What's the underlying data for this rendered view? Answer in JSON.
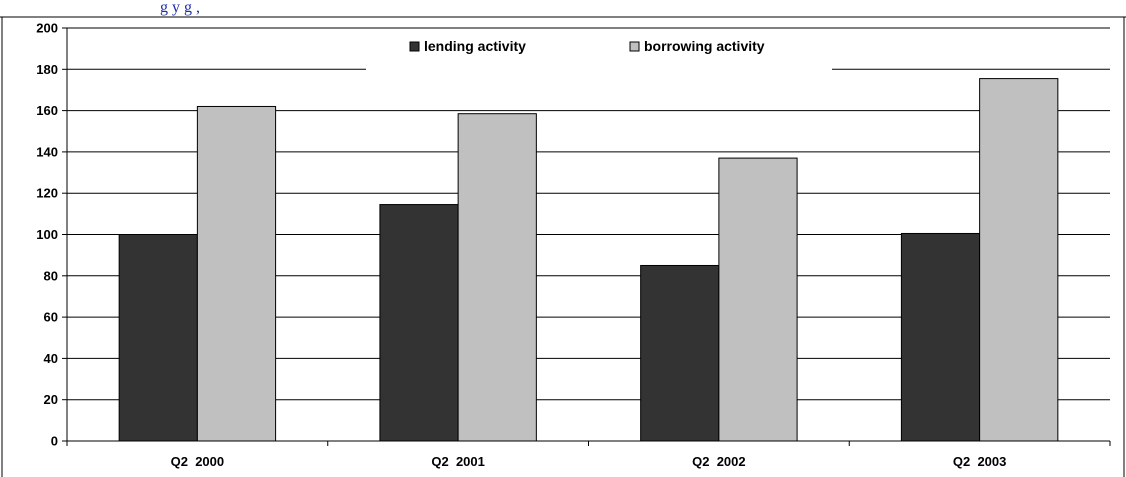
{
  "header_fragment": "g      y g      ,",
  "chart_data": {
    "type": "bar",
    "title": "",
    "xlabel": "",
    "ylabel": "",
    "categories": [
      "Q2  2000",
      "Q2  2001",
      "Q2  2002",
      "Q2  2003"
    ],
    "series": [
      {
        "name": "lending activity",
        "values": [
          100,
          114.5,
          85,
          100.5
        ],
        "color": "#333333"
      },
      {
        "name": "borrowing activity",
        "values": [
          162,
          158.5,
          137,
          175.5
        ],
        "color": "#c0c0c0"
      }
    ],
    "ylim": [
      0,
      200
    ],
    "yticks": [
      0,
      20,
      40,
      60,
      80,
      100,
      120,
      140,
      160,
      180,
      200
    ],
    "grid": true,
    "legend_position": "top-center"
  }
}
